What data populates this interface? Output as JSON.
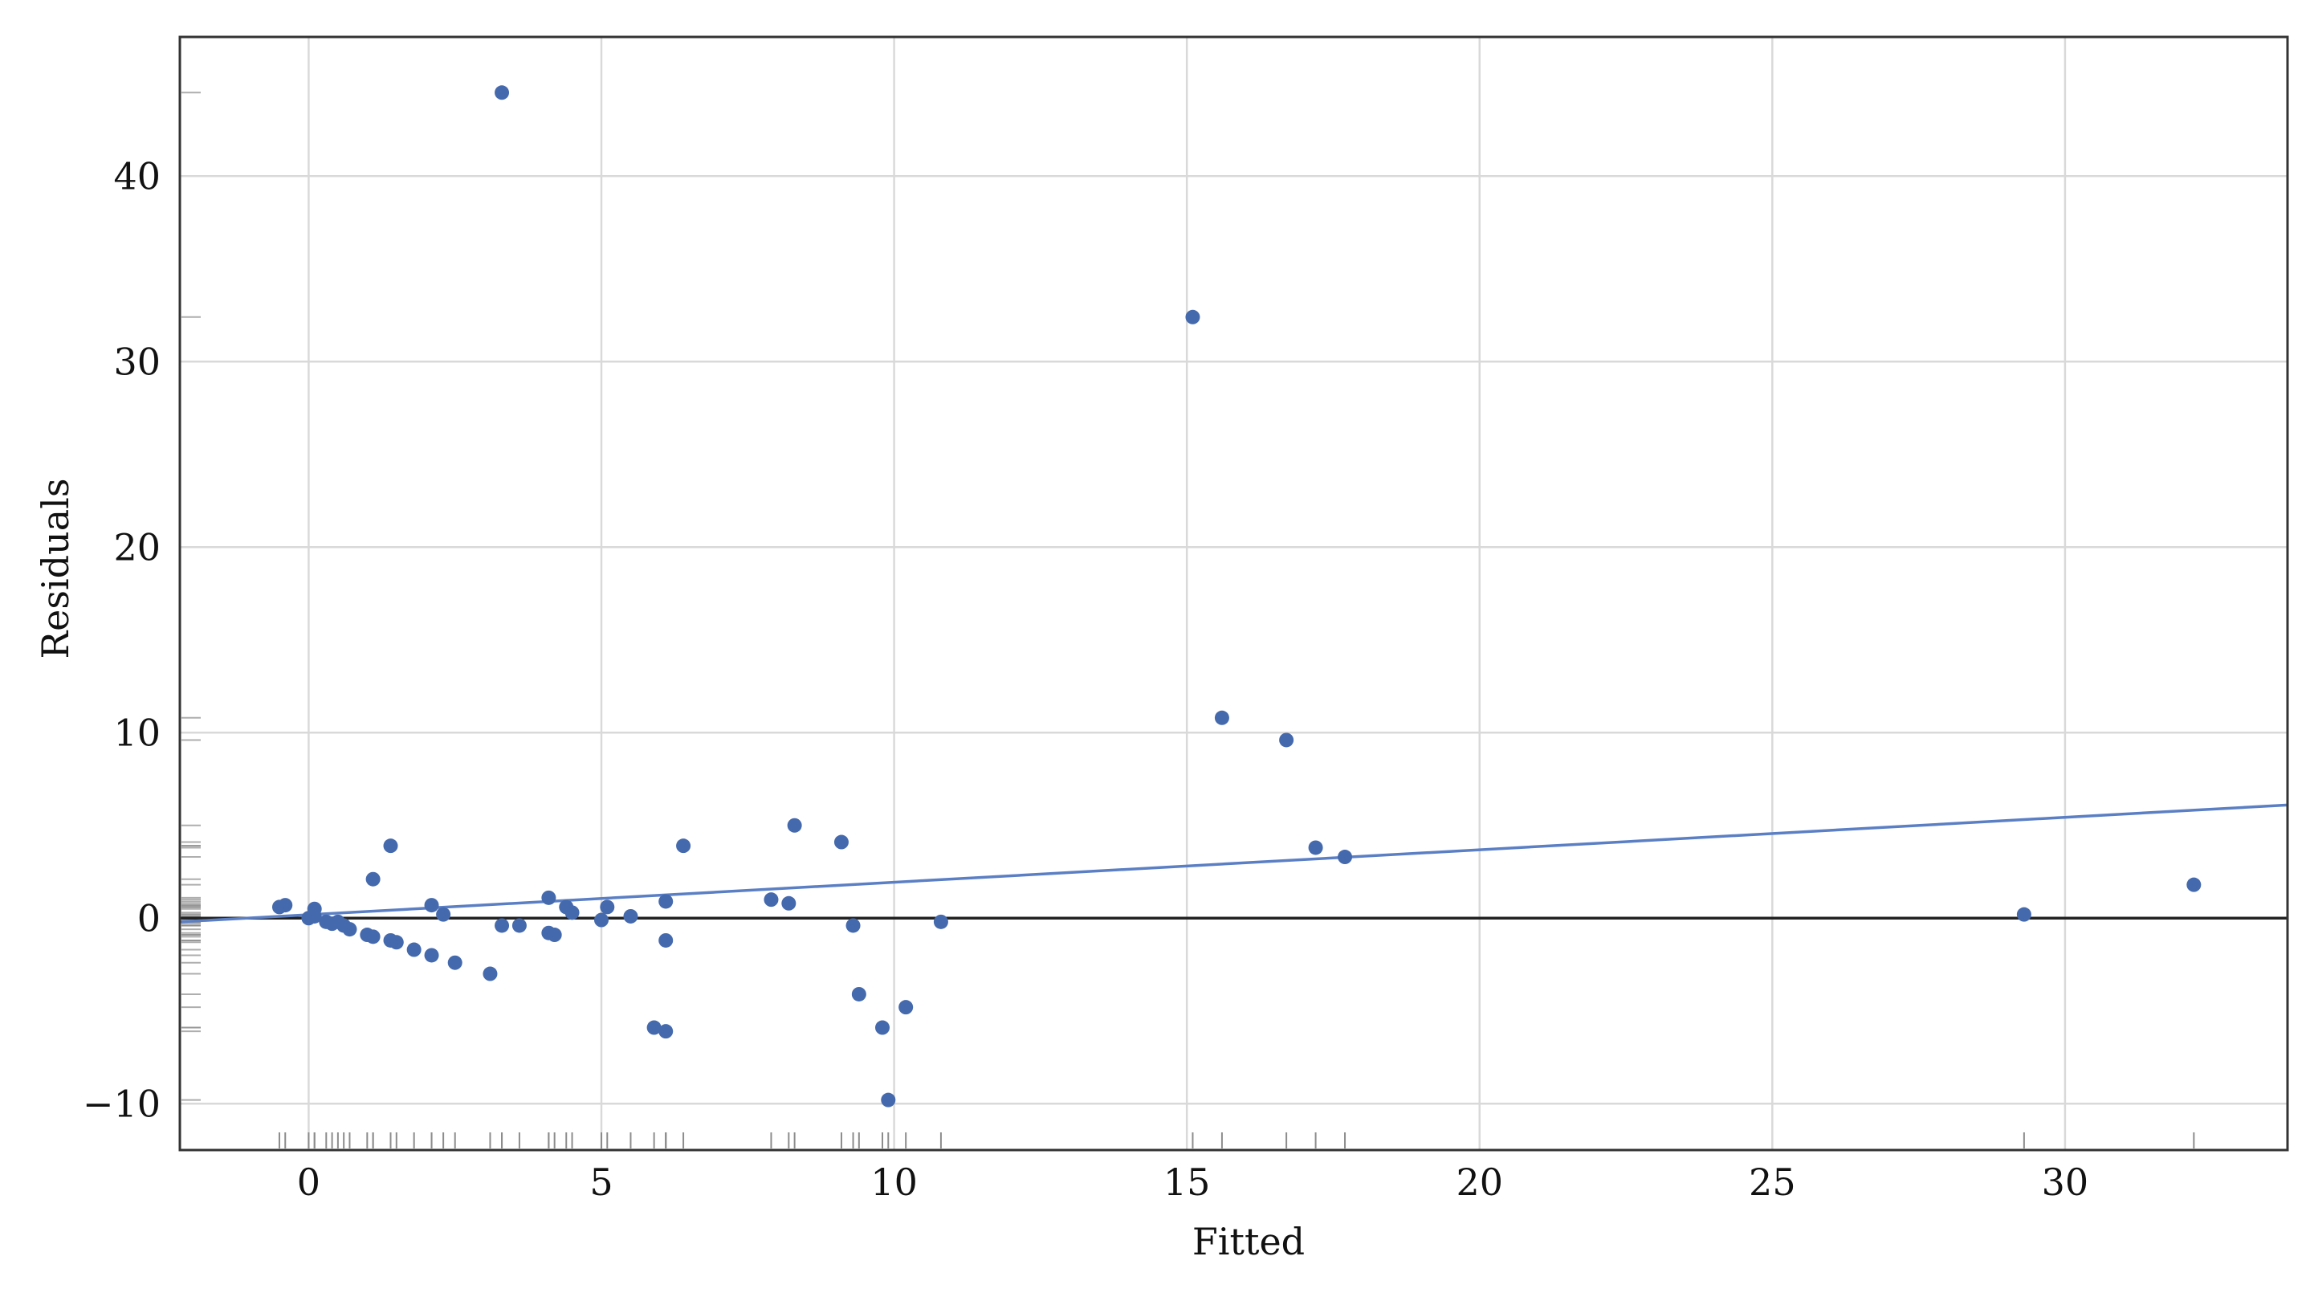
{
  "chart_data": {
    "type": "scatter",
    "title": "",
    "xlabel": "Fitted",
    "ylabel": "Residuals",
    "xlim": [
      -2.2,
      33.8
    ],
    "ylim": [
      -12.5,
      47.5
    ],
    "xticks": [
      0,
      5,
      10,
      15,
      20,
      25,
      30
    ],
    "xtick_labels": [
      "0",
      "5",
      "10",
      "15",
      "20",
      "25",
      "30"
    ],
    "yticks": [
      -10,
      0,
      10,
      20,
      30,
      40
    ],
    "ytick_labels": [
      "−10",
      "0",
      "10",
      "20",
      "30",
      "40"
    ],
    "grid": true,
    "reference_line_y": 0,
    "rug": true,
    "trend_line": {
      "x": [
        -2.2,
        33.8
      ],
      "y": [
        -0.2,
        6.1
      ]
    },
    "colors": {
      "points": "#4469ad",
      "trend": "#5b7fc4",
      "zero_line": "#222222",
      "grid": "#d9d9d9"
    },
    "points": [
      {
        "x": -0.5,
        "y": 0.6
      },
      {
        "x": -0.4,
        "y": 0.7
      },
      {
        "x": 0.0,
        "y": 0.0
      },
      {
        "x": 0.1,
        "y": 0.1
      },
      {
        "x": 0.1,
        "y": 0.5
      },
      {
        "x": 0.3,
        "y": -0.2
      },
      {
        "x": 0.4,
        "y": -0.3
      },
      {
        "x": 0.5,
        "y": -0.2
      },
      {
        "x": 0.6,
        "y": -0.4
      },
      {
        "x": 0.7,
        "y": -0.6
      },
      {
        "x": 1.0,
        "y": -0.9
      },
      {
        "x": 1.1,
        "y": -1.0
      },
      {
        "x": 1.1,
        "y": 2.1
      },
      {
        "x": 1.4,
        "y": -1.2
      },
      {
        "x": 1.5,
        "y": -1.3
      },
      {
        "x": 1.4,
        "y": 3.9
      },
      {
        "x": 1.8,
        "y": -1.7
      },
      {
        "x": 2.1,
        "y": -2.0
      },
      {
        "x": 2.1,
        "y": 0.7
      },
      {
        "x": 2.3,
        "y": 0.2
      },
      {
        "x": 2.5,
        "y": -2.4
      },
      {
        "x": 3.1,
        "y": -3.0
      },
      {
        "x": 3.3,
        "y": -0.4
      },
      {
        "x": 3.3,
        "y": 44.5
      },
      {
        "x": 3.6,
        "y": -0.4
      },
      {
        "x": 4.1,
        "y": -0.8
      },
      {
        "x": 4.1,
        "y": 1.1
      },
      {
        "x": 4.2,
        "y": -0.9
      },
      {
        "x": 4.4,
        "y": 0.6
      },
      {
        "x": 4.5,
        "y": 0.3
      },
      {
        "x": 5.0,
        "y": -0.1
      },
      {
        "x": 5.1,
        "y": 0.6
      },
      {
        "x": 5.5,
        "y": 0.1
      },
      {
        "x": 5.9,
        "y": -5.9
      },
      {
        "x": 6.1,
        "y": -1.2
      },
      {
        "x": 6.1,
        "y": 0.9
      },
      {
        "x": 6.1,
        "y": -6.1
      },
      {
        "x": 6.4,
        "y": 3.9
      },
      {
        "x": 7.9,
        "y": 1.0
      },
      {
        "x": 8.2,
        "y": 0.8
      },
      {
        "x": 8.3,
        "y": 5.0
      },
      {
        "x": 9.1,
        "y": 4.1
      },
      {
        "x": 9.3,
        "y": -0.4
      },
      {
        "x": 9.4,
        "y": -4.1
      },
      {
        "x": 9.8,
        "y": -5.9
      },
      {
        "x": 9.9,
        "y": -9.8
      },
      {
        "x": 10.2,
        "y": -4.8
      },
      {
        "x": 10.8,
        "y": -0.2
      },
      {
        "x": 15.1,
        "y": 32.4
      },
      {
        "x": 15.6,
        "y": 10.8
      },
      {
        "x": 16.7,
        "y": 9.6
      },
      {
        "x": 17.2,
        "y": 3.8
      },
      {
        "x": 17.7,
        "y": 3.3
      },
      {
        "x": 29.3,
        "y": 0.2
      },
      {
        "x": 32.2,
        "y": 1.8
      }
    ]
  }
}
